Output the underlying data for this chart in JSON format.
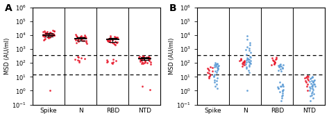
{
  "panel_A_label": "A",
  "panel_B_label": "B",
  "categories": [
    "Spike",
    "N",
    "RBD",
    "NTD"
  ],
  "ylabel": "MSD (AU/ml)",
  "ylim_min": 0.1,
  "ylim_max": 1000000,
  "color_red": "#E8192C",
  "color_blue": "#5B9BD5",
  "A_dash1": 350,
  "A_dash2": 15,
  "A_data_Spike": [
    12000,
    10000,
    9000,
    15000,
    20000,
    8000,
    11000,
    13000,
    7000,
    14000,
    18000,
    9500,
    10500,
    6000,
    16000,
    8500,
    11500,
    12500,
    7500,
    13500,
    9800,
    10200,
    14500,
    17000,
    8200,
    11200,
    13200,
    6500,
    15500,
    8700,
    1.0,
    5000,
    4500,
    19000,
    21000,
    22000
  ],
  "A_data_N": [
    5000,
    6000,
    4000,
    7000,
    3000,
    8000,
    5500,
    6500,
    4500,
    7500,
    3500,
    8500,
    5200,
    6200,
    4200,
    7200,
    3200,
    8200,
    5700,
    6700,
    4700,
    7700,
    180,
    250,
    120,
    300,
    200,
    140,
    160,
    220,
    9000,
    10000,
    11000,
    2500,
    3800
  ],
  "A_data_RBD": [
    4000,
    5000,
    3000,
    6000,
    2000,
    7000,
    4500,
    5500,
    3500,
    6500,
    2500,
    7500,
    4200,
    5200,
    3200,
    6200,
    2200,
    7200,
    4700,
    5700,
    3700,
    6700,
    120,
    150,
    90,
    180,
    100,
    110,
    130,
    160,
    8000,
    9000,
    2800,
    3200,
    4100
  ],
  "A_data_NTD": [
    200,
    250,
    180,
    300,
    220,
    160,
    240,
    190,
    270,
    210,
    230,
    170,
    260,
    140,
    280,
    150,
    245,
    195,
    255,
    215,
    235,
    175,
    265,
    145,
    285,
    155,
    130,
    320,
    1.2,
    2.0,
    120,
    100,
    90,
    110,
    85,
    95,
    105,
    115
  ],
  "A_med_Spike": 10500,
  "A_iqr_lo_Spike": 7800,
  "A_iqr_hi_Spike": 14500,
  "A_med_N": 5500,
  "A_iqr_lo_N": 3800,
  "A_iqr_hi_N": 7500,
  "A_med_RBD": 4800,
  "A_iqr_lo_RBD": 3200,
  "A_iqr_hi_RBD": 6500,
  "A_med_NTD": 210,
  "A_iqr_lo_NTD": 155,
  "A_iqr_hi_NTD": 265,
  "B_dash1": 350,
  "B_dash2": 15,
  "B_Spike_red": [
    30,
    20,
    50,
    15,
    40,
    10,
    25,
    8,
    35,
    12,
    45,
    18
  ],
  "B_Spike_blue": [
    80,
    60,
    100,
    40,
    70,
    30,
    90,
    20,
    50,
    35,
    25,
    15,
    10,
    5,
    8,
    12,
    3,
    2,
    1.5,
    6,
    45,
    55,
    65,
    75,
    85,
    4
  ],
  "B_N_red": [
    150,
    100,
    200,
    80,
    120,
    60,
    90,
    180,
    140,
    70,
    130,
    110,
    160
  ],
  "B_N_blue": [
    200,
    300,
    150,
    250,
    100,
    180,
    120,
    400,
    600,
    800,
    900,
    50,
    70,
    80,
    40,
    30,
    20,
    1200,
    1500,
    2000,
    9000,
    5000,
    3000,
    60,
    90,
    110,
    130,
    160,
    190,
    220,
    1.0
  ],
  "B_RBD_red": [
    200,
    150,
    250,
    100,
    180,
    80,
    130,
    90,
    220,
    110,
    160,
    70
  ],
  "B_RBD_blue": [
    2,
    1.5,
    3,
    1,
    2.5,
    0.8,
    1.8,
    0.5,
    4,
    1.2,
    2.2,
    0.9,
    50,
    60,
    40,
    70,
    30,
    80,
    45,
    55,
    35,
    65,
    25,
    75,
    1.5,
    2.0,
    0.7,
    0.3,
    0.2,
    0.4
  ],
  "B_NTD_red": [
    5,
    8,
    3,
    12,
    6,
    10,
    4,
    9,
    7,
    2,
    11,
    1
  ],
  "B_NTD_blue": [
    3,
    2,
    5,
    1.5,
    4,
    1,
    2.5,
    0.8,
    3.5,
    1.2,
    4.5,
    1.8,
    6,
    0.5,
    7,
    2.0,
    5.5,
    8,
    0.3,
    0.2,
    0.4,
    9,
    10,
    4,
    3,
    2,
    1.5,
    0.7,
    0.6
  ]
}
